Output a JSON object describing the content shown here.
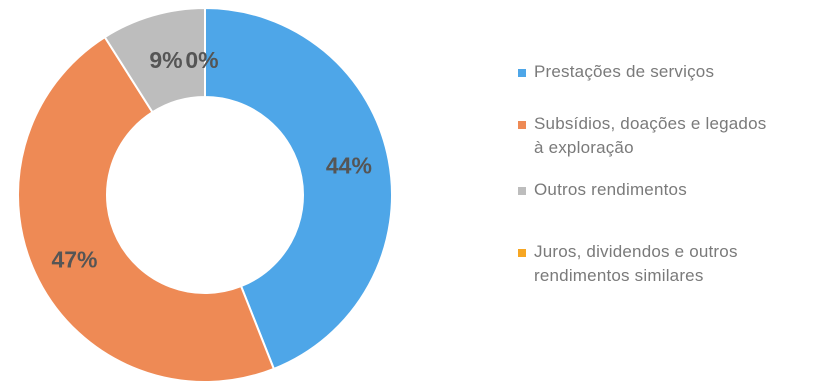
{
  "chart_data": {
    "type": "pie",
    "donut": true,
    "start_angle": "top",
    "direction": "clockwise",
    "legend_position": "right",
    "slices": [
      {
        "label": "Prestações de serviços",
        "value": 44,
        "value_label": "44%",
        "color": "#4ea6e8"
      },
      {
        "label": "Subsídios, doações e legados\nà exploração",
        "value": 47,
        "value_label": "47%",
        "color": "#ee8a55"
      },
      {
        "label": "Outros rendimentos",
        "value": 9,
        "value_label": "9%",
        "color": "#bdbdbd"
      },
      {
        "label": "Juros, dividendos e outros\nrendimentos similares",
        "value": 0,
        "value_label": "0%",
        "color": "#f6a623"
      }
    ]
  }
}
